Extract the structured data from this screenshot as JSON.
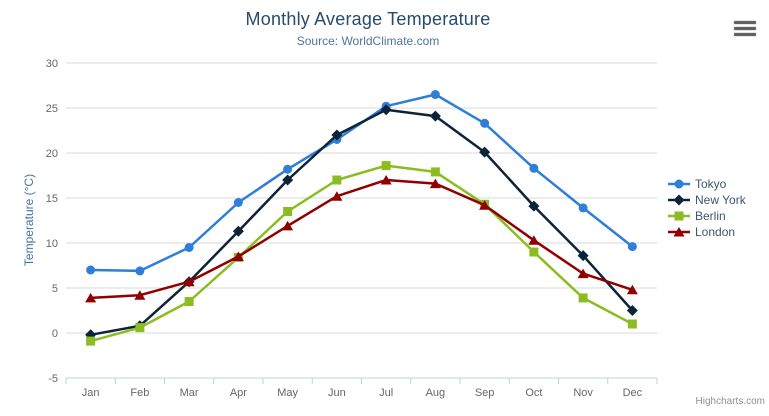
{
  "header": {
    "title": "Monthly Average Temperature",
    "subtitle": "Source: WorldClimate.com"
  },
  "menu": {
    "icon": "hamburger-menu-icon"
  },
  "credits": {
    "label": "Highcharts.com"
  },
  "chart_data": {
    "type": "line",
    "title": "Monthly Average Temperature",
    "subtitle": "Source: WorldClimate.com",
    "xlabel": "",
    "ylabel": "Temperature (°C)",
    "categories": [
      "Jan",
      "Feb",
      "Mar",
      "Apr",
      "May",
      "Jun",
      "Jul",
      "Aug",
      "Sep",
      "Oct",
      "Nov",
      "Dec"
    ],
    "ylim": [
      -5,
      30
    ],
    "yticks": [
      -5,
      0,
      5,
      10,
      15,
      20,
      25,
      30
    ],
    "grid": true,
    "legend_position": "right",
    "axis_colors": {
      "grid_line": "#d8d8d8",
      "axis_line": "#c0d0e0",
      "tick": "#c0d0e0",
      "label": "#666666"
    },
    "series": [
      {
        "name": "Tokyo",
        "color": "#2f7ed8",
        "marker": "circle",
        "values": [
          7.0,
          6.9,
          9.5,
          14.5,
          18.2,
          21.5,
          25.2,
          26.5,
          23.3,
          18.3,
          13.9,
          9.6
        ]
      },
      {
        "name": "New York",
        "color": "#0d233a",
        "marker": "diamond",
        "values": [
          -0.2,
          0.8,
          5.7,
          11.3,
          17.0,
          22.0,
          24.8,
          24.1,
          20.1,
          14.1,
          8.6,
          2.5
        ]
      },
      {
        "name": "Berlin",
        "color": "#8bbc21",
        "marker": "square",
        "values": [
          -0.9,
          0.6,
          3.5,
          8.4,
          13.5,
          17.0,
          18.6,
          17.9,
          14.3,
          9.0,
          3.9,
          1.0
        ]
      },
      {
        "name": "London",
        "color": "#910000",
        "marker": "triangle",
        "values": [
          3.9,
          4.2,
          5.7,
          8.5,
          11.9,
          15.2,
          17.0,
          16.6,
          14.2,
          10.3,
          6.6,
          4.8
        ]
      }
    ]
  }
}
